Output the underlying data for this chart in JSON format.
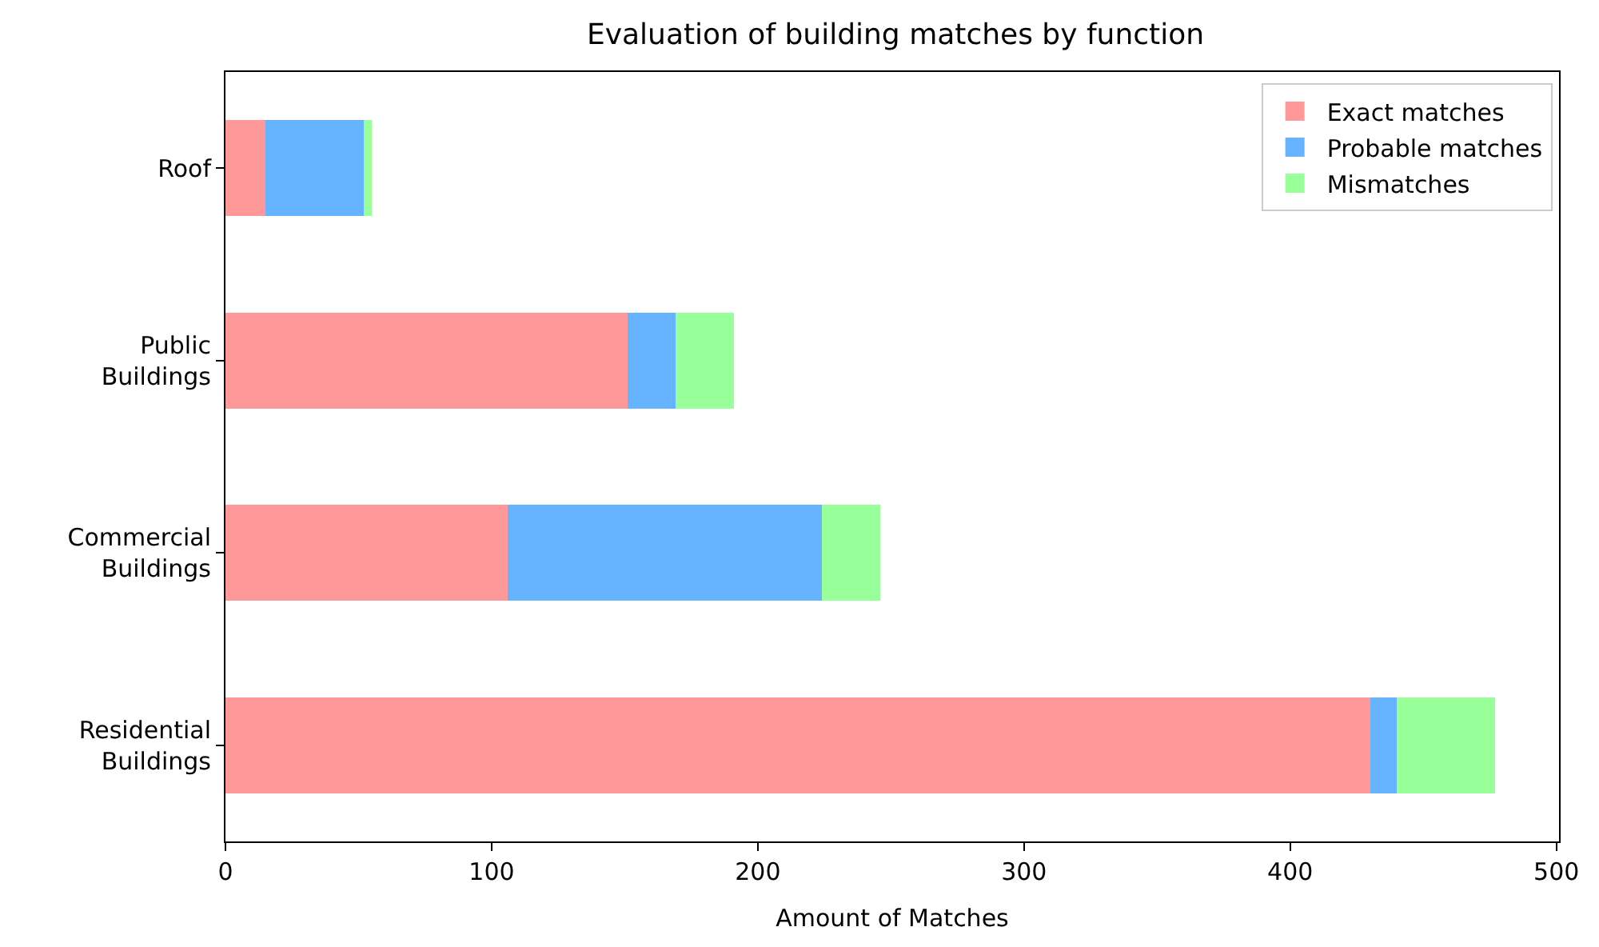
{
  "chart_data": {
    "type": "bar",
    "orientation": "horizontal",
    "stacked": true,
    "title": "Evaluation of building matches by function",
    "xlabel": "Amount of Matches",
    "categories": [
      "Roof",
      "Public\nBuildings",
      "Commercial\nBuildings",
      "Residential\nBuildings"
    ],
    "series": [
      {
        "name": "Exact matches",
        "color": "#ff9999",
        "values": [
          15,
          151,
          106,
          430
        ]
      },
      {
        "name": "Probable matches",
        "color": "#66b3ff",
        "values": [
          37,
          18,
          118,
          10
        ]
      },
      {
        "name": "Mismatches",
        "color": "#99ff99",
        "values": [
          3,
          22,
          22,
          37
        ]
      }
    ],
    "xlim": [
      0,
      501
    ],
    "xticks": [
      0,
      100,
      200,
      300,
      400,
      500
    ],
    "legend": "top right"
  }
}
